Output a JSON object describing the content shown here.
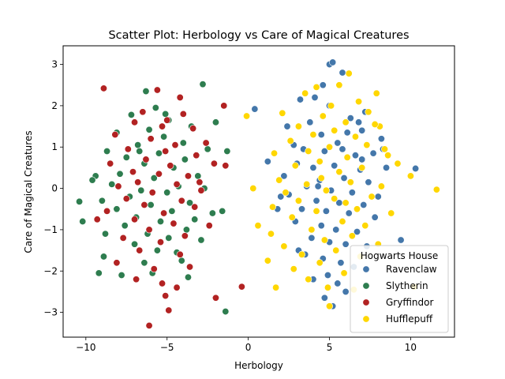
{
  "chart_data": {
    "type": "scatter",
    "title": "Scatter Plot: Herbology vs Care of Magical Creatures",
    "xlabel": "Herbology",
    "ylabel": "Care of Magical Creatures",
    "xlim": [
      -11.4,
      12.7
    ],
    "ylim": [
      -3.6,
      3.45
    ],
    "xticks": [
      -10,
      -5,
      0,
      5,
      10
    ],
    "yticks": [
      -3,
      -2,
      -1,
      0,
      1,
      2,
      3
    ],
    "grid": false,
    "legend": {
      "title": "Hogwarts House",
      "placement": "lower-right"
    },
    "series": [
      {
        "name": "Ravenclaw",
        "color": "#4477AA",
        "points": [
          [
            5.0,
            3.0
          ],
          [
            5.2,
            3.05
          ],
          [
            4.6,
            2.5
          ],
          [
            5.8,
            2.8
          ],
          [
            4.1,
            2.2
          ],
          [
            3.2,
            2.15
          ],
          [
            7.2,
            1.85
          ],
          [
            5.0,
            2.0
          ],
          [
            6.3,
            1.7
          ],
          [
            3.8,
            1.6
          ],
          [
            4.5,
            1.3
          ],
          [
            7.0,
            1.4
          ],
          [
            6.1,
            1.35
          ],
          [
            5.5,
            1.1
          ],
          [
            2.8,
            1.05
          ],
          [
            8.2,
            1.2
          ],
          [
            3.4,
            0.95
          ],
          [
            4.7,
            0.9
          ],
          [
            6.6,
            0.8
          ],
          [
            7.7,
            0.85
          ],
          [
            3.0,
            0.6
          ],
          [
            5.3,
            0.55
          ],
          [
            4.0,
            0.5
          ],
          [
            6.9,
            0.45
          ],
          [
            8.5,
            0.5
          ],
          [
            10.3,
            0.48
          ],
          [
            2.2,
            0.3
          ],
          [
            4.4,
            0.2
          ],
          [
            5.9,
            0.25
          ],
          [
            7.4,
            0.15
          ],
          [
            3.6,
            0.05
          ],
          [
            5.1,
            -0.05
          ],
          [
            6.4,
            -0.1
          ],
          [
            8.0,
            -0.2
          ],
          [
            2.5,
            -0.15
          ],
          [
            4.2,
            -0.3
          ],
          [
            5.6,
            -0.35
          ],
          [
            7.1,
            -0.4
          ],
          [
            3.3,
            -0.5
          ],
          [
            4.8,
            -0.55
          ],
          [
            6.2,
            -0.6
          ],
          [
            7.8,
            -0.7
          ],
          [
            2.9,
            -0.8
          ],
          [
            4.5,
            -0.9
          ],
          [
            5.4,
            -1.0
          ],
          [
            6.7,
            -1.05
          ],
          [
            3.9,
            -1.2
          ],
          [
            5.0,
            -1.3
          ],
          [
            6.0,
            -1.35
          ],
          [
            7.3,
            -1.4
          ],
          [
            9.4,
            -1.25
          ],
          [
            3.5,
            -1.6
          ],
          [
            4.6,
            -1.7
          ],
          [
            5.7,
            -1.8
          ],
          [
            6.5,
            -1.9
          ],
          [
            3.1,
            -1.5
          ],
          [
            4.9,
            -2.1
          ],
          [
            5.5,
            -2.3
          ],
          [
            4.7,
            -2.65
          ],
          [
            5.2,
            -2.85
          ],
          [
            6.0,
            -2.5
          ],
          [
            4.0,
            -2.2
          ],
          [
            0.4,
            1.92
          ],
          [
            1.2,
            0.65
          ],
          [
            1.8,
            -0.5
          ],
          [
            2.0,
            -0.2
          ],
          [
            7.0,
            0.7
          ],
          [
            8.3,
            0.95
          ],
          [
            2.4,
            1.5
          ],
          [
            6.8,
            1.6
          ],
          [
            4.3,
            0.05
          ],
          [
            5.8,
            0.95
          ]
        ]
      },
      {
        "name": "Slytherin",
        "color": "#2E7D4F",
        "points": [
          [
            -2.8,
            2.52
          ],
          [
            -6.3,
            2.35
          ],
          [
            -5.7,
            1.95
          ],
          [
            -7.2,
            1.78
          ],
          [
            -4.9,
            1.65
          ],
          [
            -3.5,
            1.5
          ],
          [
            -6.1,
            1.42
          ],
          [
            -8.1,
            1.35
          ],
          [
            -5.2,
            1.25
          ],
          [
            -4.0,
            1.1
          ],
          [
            -6.8,
            1.05
          ],
          [
            -8.7,
            0.9
          ],
          [
            -2.5,
            0.95
          ],
          [
            -5.5,
            0.85
          ],
          [
            -7.5,
            0.75
          ],
          [
            -3.9,
            0.7
          ],
          [
            -6.4,
            0.6
          ],
          [
            -4.6,
            0.5
          ],
          [
            -9.4,
            0.3
          ],
          [
            -7.9,
            0.35
          ],
          [
            -3.1,
            0.3
          ],
          [
            -5.8,
            0.25
          ],
          [
            -8.4,
            0.1
          ],
          [
            -4.3,
            0.05
          ],
          [
            -6.6,
            -0.05
          ],
          [
            -2.7,
            0.0
          ],
          [
            -5.0,
            -0.1
          ],
          [
            -7.3,
            -0.2
          ],
          [
            -9.0,
            -0.3
          ],
          [
            -3.6,
            -0.35
          ],
          [
            -6.0,
            -0.4
          ],
          [
            -8.1,
            -0.5
          ],
          [
            -4.7,
            -0.55
          ],
          [
            -2.2,
            -0.6
          ],
          [
            -6.9,
            -0.7
          ],
          [
            -5.4,
            -0.8
          ],
          [
            -10.2,
            -0.8
          ],
          [
            -7.6,
            -0.9
          ],
          [
            -3.8,
            -1.0
          ],
          [
            -6.2,
            -1.1
          ],
          [
            -8.8,
            -1.1
          ],
          [
            -4.9,
            -1.2
          ],
          [
            -2.9,
            -1.25
          ],
          [
            -7.0,
            -1.35
          ],
          [
            -5.6,
            -1.5
          ],
          [
            -8.9,
            -1.65
          ],
          [
            -6.4,
            -1.8
          ],
          [
            -4.1,
            -1.75
          ],
          [
            -7.8,
            -2.1
          ],
          [
            -5.9,
            -2.05
          ],
          [
            -3.7,
            -2.15
          ],
          [
            -1.4,
            -2.98
          ],
          [
            -9.2,
            -2.05
          ],
          [
            -10.4,
            -0.32
          ],
          [
            -1.3,
            0.9
          ],
          [
            -2.0,
            1.6
          ],
          [
            -5.1,
            1.8
          ],
          [
            -9.6,
            0.2
          ],
          [
            -1.6,
            -0.55
          ],
          [
            -4.4,
            -1.55
          ],
          [
            -6.7,
            0.9
          ],
          [
            -3.3,
            -0.75
          ]
        ]
      },
      {
        "name": "Gryffindor",
        "color": "#B22222",
        "points": [
          [
            -8.9,
            2.42
          ],
          [
            -5.6,
            2.38
          ],
          [
            -4.2,
            2.2
          ],
          [
            -6.5,
            1.85
          ],
          [
            -4.0,
            1.8
          ],
          [
            -1.5,
            2.0
          ],
          [
            -7.0,
            1.6
          ],
          [
            -5.3,
            1.5
          ],
          [
            -3.4,
            1.45
          ],
          [
            -8.2,
            1.3
          ],
          [
            -6.0,
            1.2
          ],
          [
            -4.5,
            1.05
          ],
          [
            -2.6,
            1.1
          ],
          [
            -7.4,
            0.95
          ],
          [
            -5.1,
            0.9
          ],
          [
            -3.2,
            0.8
          ],
          [
            -6.3,
            0.7
          ],
          [
            -8.5,
            0.6
          ],
          [
            -4.8,
            0.55
          ],
          [
            -1.4,
            0.55
          ],
          [
            -7.1,
            0.4
          ],
          [
            -5.5,
            0.35
          ],
          [
            -3.7,
            0.3
          ],
          [
            -6.8,
            0.15
          ],
          [
            -4.4,
            0.1
          ],
          [
            -8.0,
            0.05
          ],
          [
            -2.9,
            -0.05
          ],
          [
            -5.9,
            -0.1
          ],
          [
            -7.5,
            -0.25
          ],
          [
            -4.1,
            -0.3
          ],
          [
            -6.4,
            -0.4
          ],
          [
            -3.3,
            -0.45
          ],
          [
            -8.7,
            -0.55
          ],
          [
            -5.2,
            -0.6
          ],
          [
            -7.0,
            -0.75
          ],
          [
            -4.6,
            -0.85
          ],
          [
            -2.4,
            -0.9
          ],
          [
            -6.1,
            -1.0
          ],
          [
            -9.3,
            -0.75
          ],
          [
            -3.9,
            -1.15
          ],
          [
            -7.7,
            -1.2
          ],
          [
            -5.4,
            -1.3
          ],
          [
            -6.7,
            -1.5
          ],
          [
            -4.2,
            -1.6
          ],
          [
            -8.1,
            -1.8
          ],
          [
            -5.8,
            -1.95
          ],
          [
            -3.6,
            -1.9
          ],
          [
            -6.9,
            -2.2
          ],
          [
            -5.3,
            -2.3
          ],
          [
            -4.4,
            -2.4
          ],
          [
            -5.1,
            -2.6
          ],
          [
            -4.9,
            -2.95
          ],
          [
            -6.1,
            -3.32
          ],
          [
            -2.0,
            -2.65
          ],
          [
            -0.4,
            -2.38
          ],
          [
            -2.1,
            0.6
          ],
          [
            -5.0,
            1.65
          ],
          [
            -3.0,
            0.15
          ]
        ]
      },
      {
        "name": "Hufflepuff",
        "color": "#FFD700",
        "points": [
          [
            6.2,
            2.78
          ],
          [
            5.6,
            2.5
          ],
          [
            7.9,
            2.3
          ],
          [
            4.2,
            2.45
          ],
          [
            3.5,
            2.3
          ],
          [
            6.8,
            2.1
          ],
          [
            5.1,
            2.0
          ],
          [
            2.1,
            1.82
          ],
          [
            -0.1,
            1.75
          ],
          [
            7.4,
            1.85
          ],
          [
            4.6,
            1.75
          ],
          [
            6.0,
            1.6
          ],
          [
            3.1,
            1.5
          ],
          [
            5.3,
            1.4
          ],
          [
            8.1,
            1.5
          ],
          [
            4.0,
            1.3
          ],
          [
            6.6,
            1.25
          ],
          [
            2.6,
            1.15
          ],
          [
            7.3,
            1.05
          ],
          [
            5.0,
            1.0
          ],
          [
            3.7,
            0.9
          ],
          [
            8.6,
            0.8
          ],
          [
            1.6,
            0.85
          ],
          [
            6.1,
            0.75
          ],
          [
            4.4,
            0.65
          ],
          [
            2.9,
            0.55
          ],
          [
            7.0,
            0.5
          ],
          [
            5.6,
            0.4
          ],
          [
            9.2,
            0.6
          ],
          [
            10.0,
            0.3
          ],
          [
            1.9,
            0.2
          ],
          [
            3.6,
            0.1
          ],
          [
            6.3,
            0.15
          ],
          [
            8.2,
            0.05
          ],
          [
            4.8,
            -0.05
          ],
          [
            2.3,
            -0.1
          ],
          [
            11.6,
            -0.03
          ],
          [
            7.6,
            -0.2
          ],
          [
            5.3,
            -0.25
          ],
          [
            3.1,
            -0.3
          ],
          [
            1.5,
            -0.45
          ],
          [
            6.7,
            -0.5
          ],
          [
            4.2,
            -0.55
          ],
          [
            8.8,
            -0.6
          ],
          [
            2.7,
            -0.7
          ],
          [
            5.8,
            -0.8
          ],
          [
            7.2,
            -0.9
          ],
          [
            3.9,
            -1.0
          ],
          [
            1.4,
            -1.1
          ],
          [
            6.4,
            -1.15
          ],
          [
            4.7,
            -1.25
          ],
          [
            2.2,
            -1.4
          ],
          [
            8.0,
            -1.35
          ],
          [
            5.4,
            -1.5
          ],
          [
            3.3,
            -1.6
          ],
          [
            1.2,
            -1.75
          ],
          [
            6.9,
            -1.65
          ],
          [
            4.4,
            -1.8
          ],
          [
            2.8,
            -1.95
          ],
          [
            5.9,
            -2.05
          ],
          [
            3.7,
            -2.2
          ],
          [
            4.9,
            -2.4
          ],
          [
            1.7,
            -2.4
          ],
          [
            5.0,
            -2.85
          ],
          [
            6.5,
            -2.45
          ],
          [
            10.2,
            -2.38
          ],
          [
            0.3,
            0.0
          ],
          [
            0.6,
            -0.9
          ],
          [
            8.4,
            0.95
          ],
          [
            7.8,
            1.55
          ],
          [
            4.5,
            0.25
          ],
          [
            6.0,
            -0.35
          ]
        ]
      }
    ]
  }
}
